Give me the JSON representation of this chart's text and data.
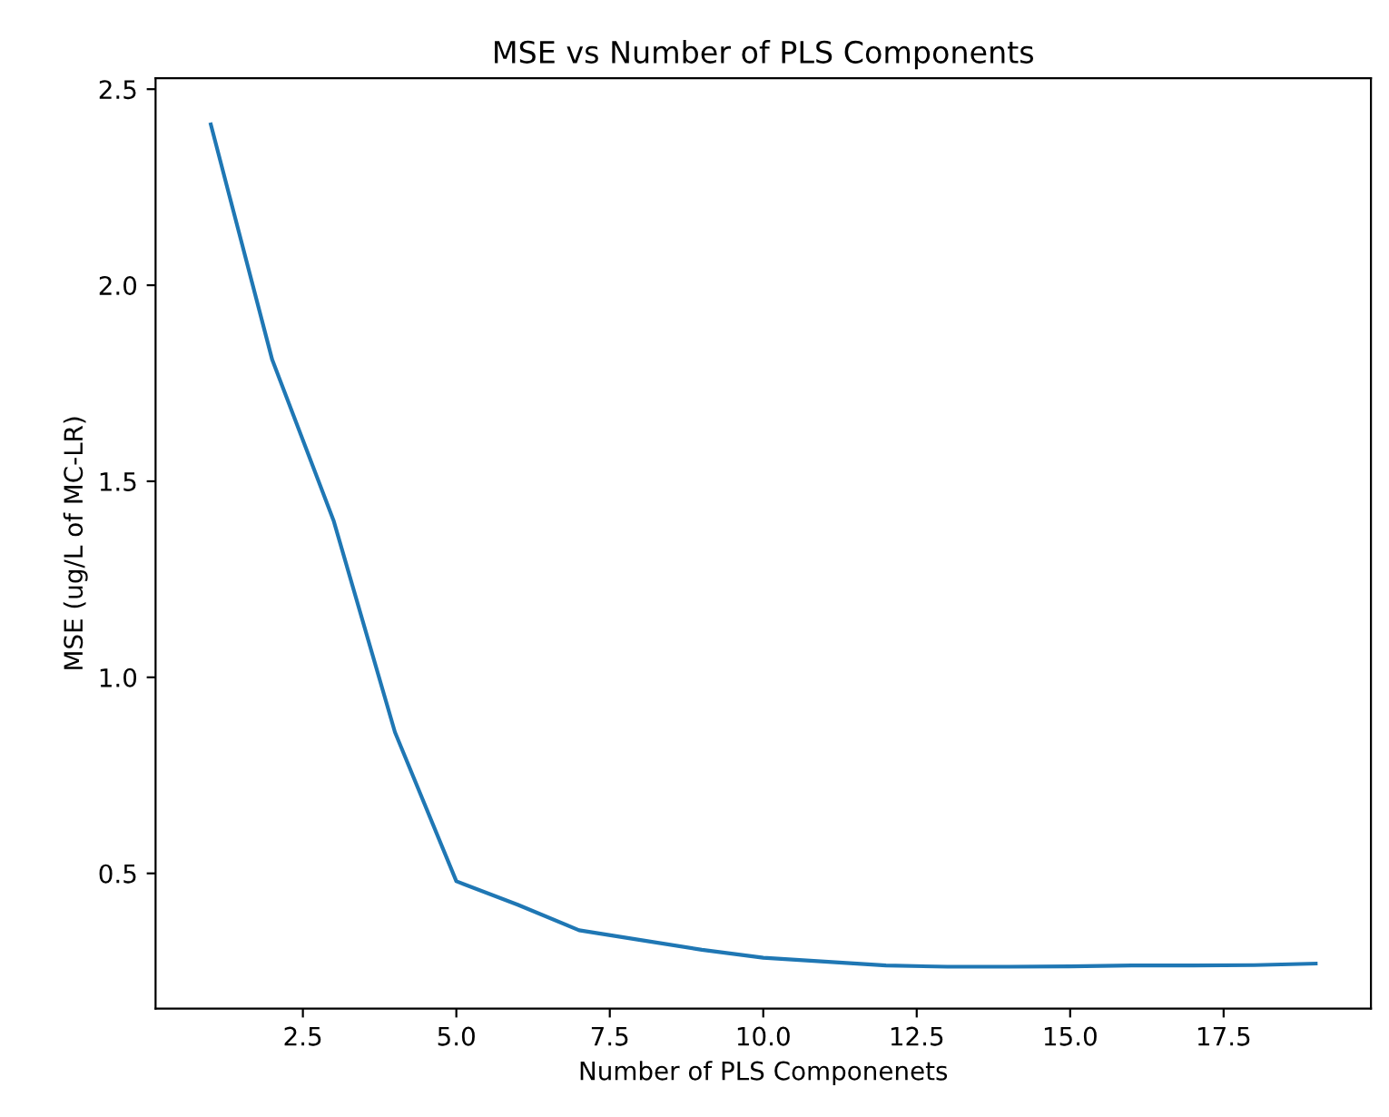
{
  "chart_data": {
    "type": "line",
    "title": "MSE vs Number of PLS Components",
    "xlabel": "Number of PLS Componenets",
    "ylabel": "MSE (ug/L of MC-LR)",
    "x": [
      1,
      2,
      3,
      4,
      5,
      6,
      7,
      8,
      9,
      10,
      11,
      12,
      13,
      14,
      15,
      16,
      17,
      18,
      19
    ],
    "series": [
      {
        "color": "#1f77b4",
        "values": [
          2.41,
          1.81,
          1.4,
          0.86,
          0.48,
          0.42,
          0.355,
          0.33,
          0.305,
          0.285,
          0.275,
          0.265,
          0.262,
          0.262,
          0.263,
          0.265,
          0.265,
          0.266,
          0.27
        ]
      }
    ],
    "xlim": [
      0.1,
      19.9
    ],
    "xticks": [
      {
        "value": 2.5,
        "label": "2.5"
      },
      {
        "value": 5,
        "label": "5.0"
      },
      {
        "value": 7.5,
        "label": "7.5"
      },
      {
        "value": 10,
        "label": "10.0"
      },
      {
        "value": 12.5,
        "label": "12.5"
      },
      {
        "value": 15,
        "label": "15.0"
      },
      {
        "value": 17.5,
        "label": "17.5"
      }
    ],
    "ylim": [
      0.155,
      2.528
    ],
    "yticks": [
      {
        "value": 0.5,
        "label": "0.5"
      },
      {
        "value": 1,
        "label": "1.0"
      },
      {
        "value": 1.5,
        "label": "1.5"
      },
      {
        "value": 2,
        "label": "2.0"
      },
      {
        "value": 2.5,
        "label": "2.5"
      }
    ]
  }
}
